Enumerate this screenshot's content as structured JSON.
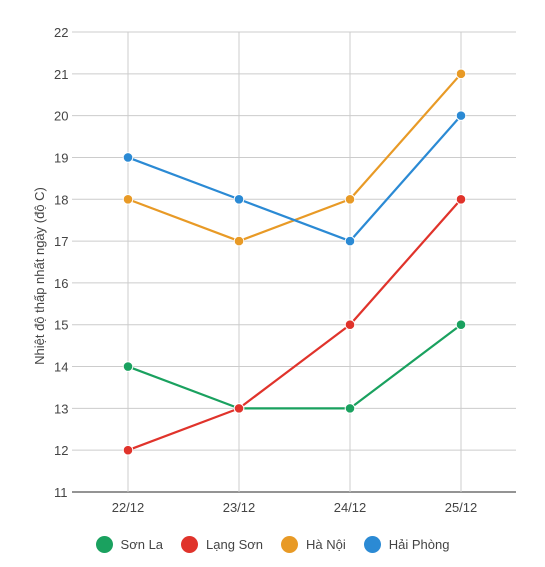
{
  "chart_data": {
    "type": "line",
    "ylabel": "Nhiệt độ thấp nhất ngày (độ C)",
    "xlabel": "",
    "categories": [
      "22/12",
      "23/12",
      "24/12",
      "25/12"
    ],
    "ylim": [
      11,
      22
    ],
    "yticks": [
      11,
      12,
      13,
      14,
      15,
      16,
      17,
      18,
      19,
      20,
      21,
      22
    ],
    "grid": true,
    "legend_position": "bottom",
    "series": [
      {
        "name": "Sơn La",
        "color": "#1aa15f",
        "values": [
          14,
          13,
          13,
          15
        ]
      },
      {
        "name": "Lạng Sơn",
        "color": "#e0332b",
        "values": [
          12,
          13,
          15,
          18
        ]
      },
      {
        "name": "Hà Nội",
        "color": "#e89a26",
        "values": [
          18,
          17,
          18,
          21
        ]
      },
      {
        "name": "Hải Phòng",
        "color": "#2b8ad4",
        "values": [
          19,
          18,
          17,
          20
        ]
      }
    ]
  }
}
